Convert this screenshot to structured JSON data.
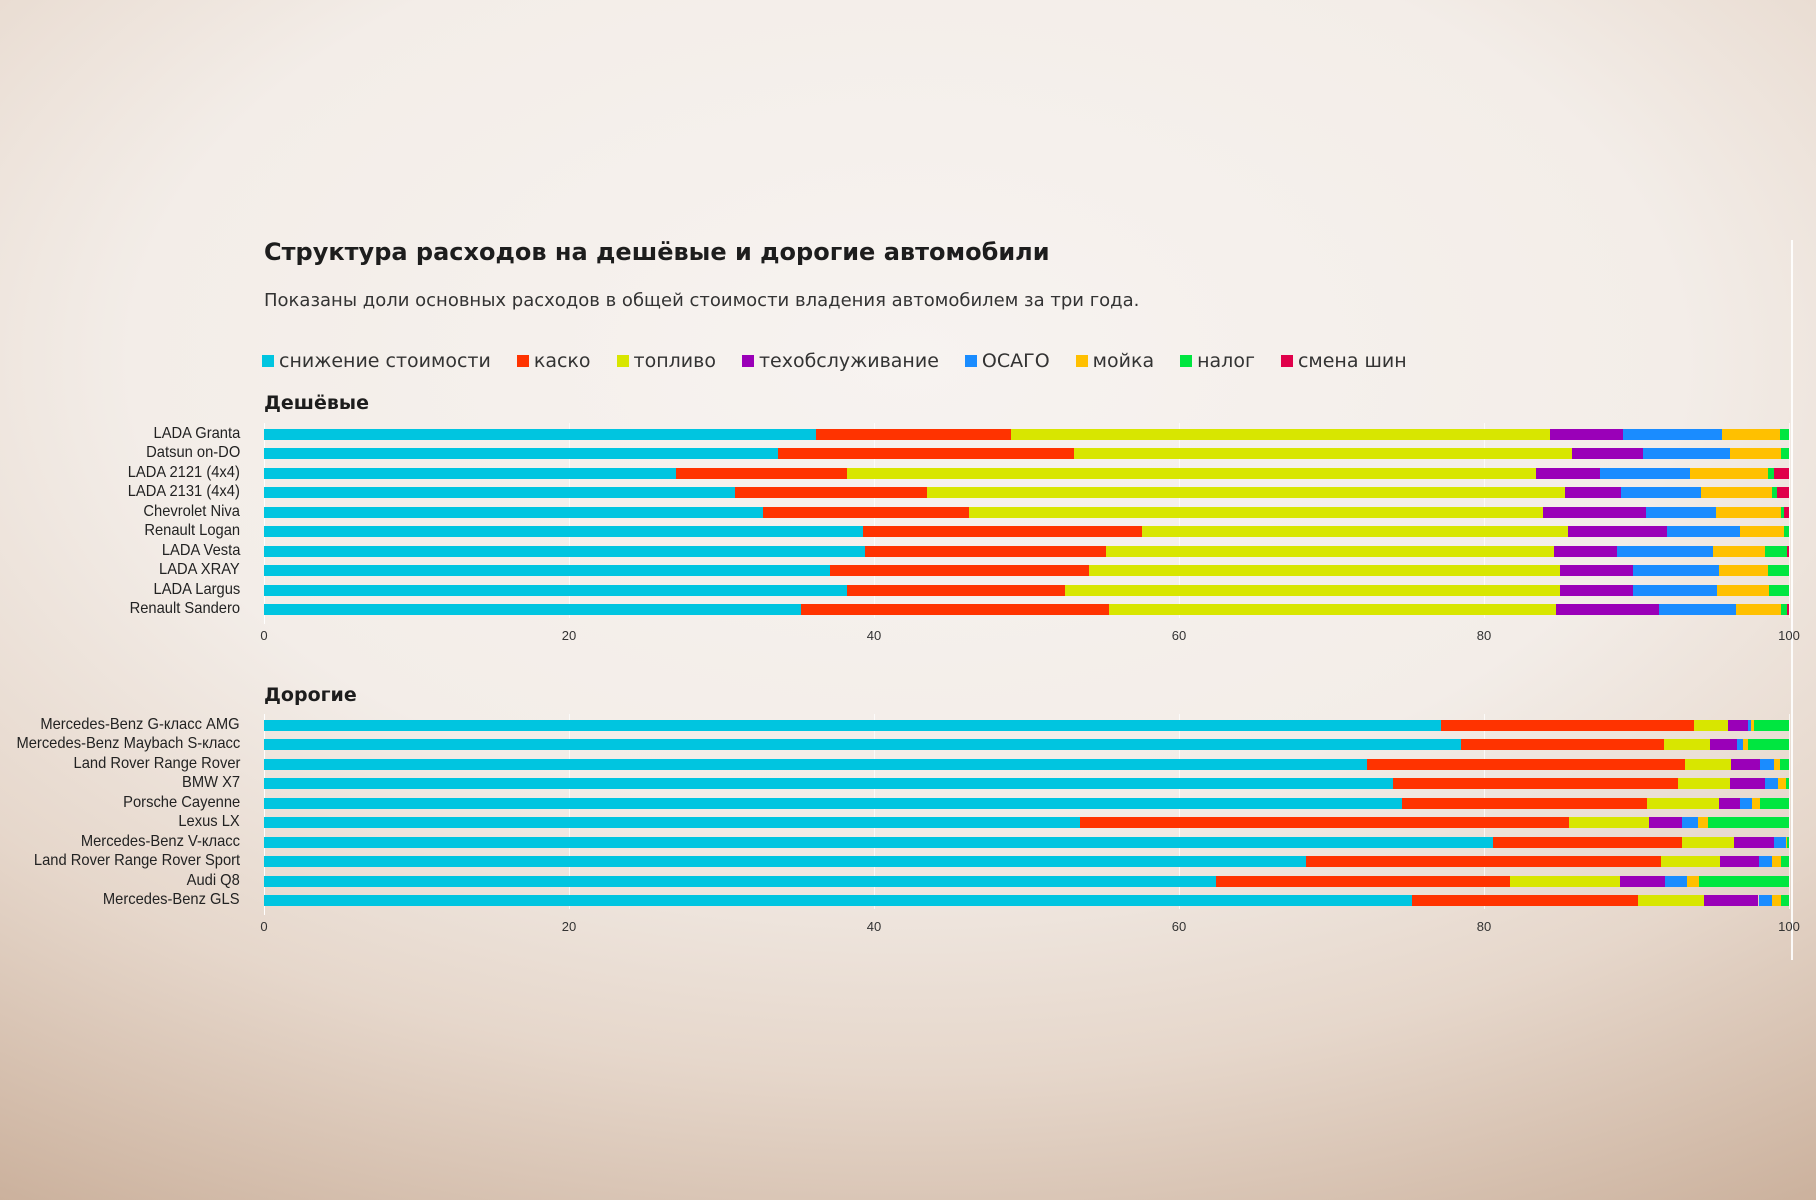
{
  "title": "Структура расходов на дешёвые и дорогие автомобили",
  "subtitle": "Показаны доли основных расходов в общей стоимости владения автомобилем за три года.",
  "legend": [
    {
      "label": "снижение стоимости",
      "color": "#00c5e0"
    },
    {
      "label": "каско",
      "color": "#ff3300"
    },
    {
      "label": "топливо",
      "color": "#d8e600"
    },
    {
      "label": "техобслуживание",
      "color": "#9a00b8"
    },
    {
      "label": "ОСАГО",
      "color": "#1a8cff"
    },
    {
      "label": "мойка",
      "color": "#ffc000"
    },
    {
      "label": "налог",
      "color": "#00e640"
    },
    {
      "label": "смена шин",
      "color": "#e0004a"
    }
  ],
  "chart_data": [
    {
      "type": "bar",
      "orientation": "horizontal",
      "stacked": true,
      "title": "Дешёвые",
      "xlim": [
        0,
        100
      ],
      "x_ticks": [
        "0",
        "20",
        "40",
        "60",
        "80",
        "100"
      ],
      "grid": true,
      "legend_position": "top",
      "categories": [
        "LADA Granta",
        "Datsun on-DO",
        "LADA 2121 (4x4)",
        "LADA 2131 (4x4)",
        "Chevrolet Niva",
        "Renault Logan",
        "LADA Vesta",
        "LADA XRAY",
        "LADA Largus",
        "Renault Sandero"
      ],
      "series": [
        {
          "name": "снижение стоимости",
          "values": [
            36.2,
            33.7,
            27.0,
            30.9,
            32.7,
            39.3,
            39.4,
            37.1,
            38.2,
            35.2
          ]
        },
        {
          "name": "каско",
          "values": [
            12.8,
            19.4,
            11.2,
            12.6,
            13.5,
            18.3,
            15.8,
            17.0,
            14.3,
            20.2
          ]
        },
        {
          "name": "топливо",
          "values": [
            35.3,
            32.7,
            45.2,
            41.8,
            37.7,
            27.9,
            29.4,
            30.9,
            32.5,
            29.3
          ]
        },
        {
          "name": "техобслуживание",
          "values": [
            4.8,
            4.6,
            4.2,
            3.7,
            6.7,
            6.5,
            4.1,
            4.8,
            4.8,
            6.8
          ]
        },
        {
          "name": "ОСАГО",
          "values": [
            6.5,
            5.7,
            5.9,
            5.2,
            4.6,
            4.8,
            6.3,
            5.6,
            5.5,
            5.0
          ]
        },
        {
          "name": "мойка",
          "values": [
            3.8,
            3.4,
            5.1,
            4.7,
            4.3,
            2.9,
            3.4,
            3.2,
            3.4,
            3.0
          ]
        },
        {
          "name": "налог",
          "values": [
            0.6,
            0.5,
            0.4,
            0.3,
            0.2,
            0.3,
            1.5,
            1.4,
            1.3,
            0.4
          ]
        },
        {
          "name": "смена шин",
          "values": [
            0.0,
            0.0,
            1.0,
            0.8,
            0.3,
            0.0,
            0.1,
            0.0,
            0.0,
            0.1
          ]
        }
      ]
    },
    {
      "type": "bar",
      "orientation": "horizontal",
      "stacked": true,
      "title": "Дорогие",
      "xlim": [
        0,
        100
      ],
      "x_ticks": [
        "0",
        "20",
        "40",
        "60",
        "80",
        "100"
      ],
      "grid": true,
      "categories": [
        "Mercedes-Benz G-класс AMG",
        "Mercedes-Benz Maybach S-класс",
        "Land Rover Range Rover",
        "BMW X7",
        "Porsche Cayenne",
        "Lexus LX",
        "Mercedes-Benz V-класс",
        "Land Rover Range Rover Sport",
        "Audi Q8",
        "Mercedes-Benz GLS"
      ],
      "series": [
        {
          "name": "снижение стоимости",
          "values": [
            77.2,
            78.5,
            72.3,
            74.0,
            74.6,
            53.5,
            80.6,
            68.3,
            62.4,
            75.3
          ]
        },
        {
          "name": "каско",
          "values": [
            16.6,
            13.3,
            20.9,
            18.7,
            16.1,
            32.1,
            12.4,
            23.3,
            19.3,
            14.8
          ]
        },
        {
          "name": "топливо",
          "values": [
            2.2,
            3.0,
            3.0,
            3.4,
            4.7,
            5.2,
            3.4,
            3.9,
            7.2,
            4.3
          ]
        },
        {
          "name": "техобслуживание",
          "values": [
            1.3,
            1.8,
            1.9,
            2.3,
            1.4,
            2.2,
            2.6,
            2.5,
            3.0,
            3.6
          ]
        },
        {
          "name": "ОСАГО",
          "values": [
            0.2,
            0.4,
            0.9,
            0.9,
            0.8,
            1.0,
            0.8,
            0.9,
            1.4,
            0.9
          ]
        },
        {
          "name": "мойка",
          "values": [
            0.2,
            0.3,
            0.4,
            0.5,
            0.5,
            0.7,
            0.1,
            0.6,
            0.8,
            0.6
          ]
        },
        {
          "name": "налог",
          "values": [
            2.3,
            2.7,
            0.6,
            0.2,
            1.9,
            5.3,
            0.1,
            0.5,
            5.9,
            0.5
          ]
        },
        {
          "name": "смена шин",
          "values": [
            0,
            0,
            0,
            0,
            0,
            0,
            0,
            0,
            0,
            0
          ]
        }
      ]
    }
  ]
}
